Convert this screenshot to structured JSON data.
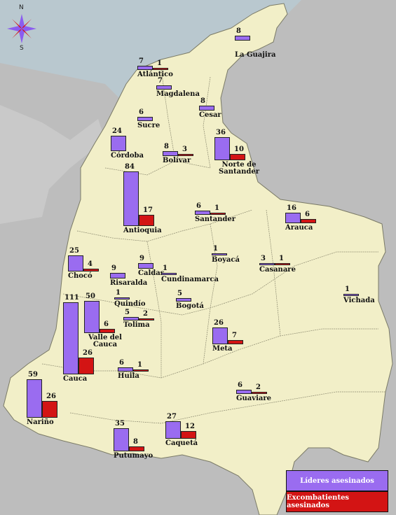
{
  "compass": {
    "north": "N",
    "south": "S"
  },
  "colors": {
    "lideres": "#9a6cf0",
    "excombatientes": "#d31414",
    "land": "#f2efc8",
    "water": "#b8cdd6"
  },
  "legend": {
    "lideres_label": "Líderes asesinados",
    "excombatientes_label": "Excombatientes asesinados"
  },
  "departments": [
    {
      "name": "La Guajira",
      "lideres": 8,
      "excombatientes": null
    },
    {
      "name": "Atlántico",
      "lideres": 7,
      "excombatientes": 1
    },
    {
      "name": "Magdalena",
      "lideres": 7,
      "excombatientes": null
    },
    {
      "name": "Cesar",
      "lideres": 8,
      "excombatientes": null
    },
    {
      "name": "Sucre",
      "lideres": 6,
      "excombatientes": null
    },
    {
      "name": "Córdoba",
      "lideres": 24,
      "excombatientes": null
    },
    {
      "name": "Bolívar",
      "lideres": 8,
      "excombatientes": 3
    },
    {
      "name": "Norte de Santander",
      "lideres": 36,
      "excombatientes": 10
    },
    {
      "name": "Antioquia",
      "lideres": 84,
      "excombatientes": 17
    },
    {
      "name": "Santander",
      "lideres": 6,
      "excombatientes": 1
    },
    {
      "name": "Arauca",
      "lideres": 16,
      "excombatientes": 6
    },
    {
      "name": "Chocó",
      "lideres": 25,
      "excombatientes": 4
    },
    {
      "name": "Risaralda",
      "lideres": 9,
      "excombatientes": null
    },
    {
      "name": "Caldas",
      "lideres": 9,
      "excombatientes": null
    },
    {
      "name": "Boyacá",
      "lideres": 1,
      "excombatientes": null
    },
    {
      "name": "Casanare",
      "lideres": 3,
      "excombatientes": 1
    },
    {
      "name": "Cundinamarca",
      "lideres": 1,
      "excombatientes": null
    },
    {
      "name": "Quindío",
      "lideres": 1,
      "excombatientes": null
    },
    {
      "name": "Bogotá",
      "lideres": 5,
      "excombatientes": null
    },
    {
      "name": "Vichada",
      "lideres": 1,
      "excombatientes": null
    },
    {
      "name": "Valle del Cauca",
      "lideres": 50,
      "excombatientes": 6
    },
    {
      "name": "Tolima",
      "lideres": 5,
      "excombatientes": 2
    },
    {
      "name": "Cauca",
      "lideres": 111,
      "excombatientes": 26
    },
    {
      "name": "Meta",
      "lideres": 26,
      "excombatientes": 7
    },
    {
      "name": "Huila",
      "lideres": 6,
      "excombatientes": 1
    },
    {
      "name": "Nariño",
      "lideres": 59,
      "excombatientes": 26
    },
    {
      "name": "Guaviare",
      "lideres": 6,
      "excombatientes": 2
    },
    {
      "name": "Putumayo",
      "lideres": 35,
      "excombatientes": 8
    },
    {
      "name": "Caquetá",
      "lideres": 27,
      "excombatientes": 12
    }
  ]
}
